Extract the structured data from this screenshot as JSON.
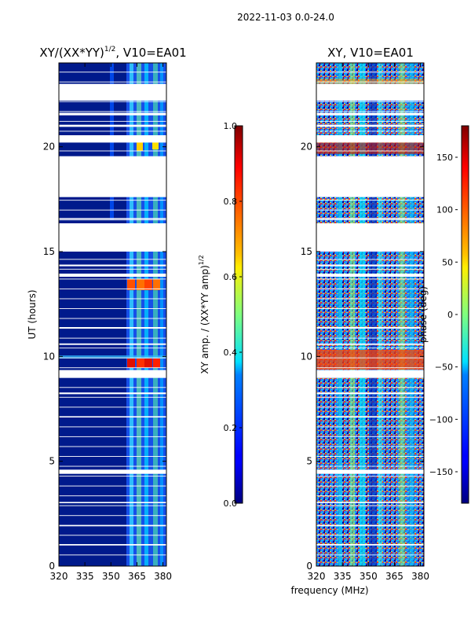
{
  "suptitle": "2022-11-03 0.0-24.0",
  "chart_data": [
    {
      "type": "heatmap",
      "title_main": "XY/(XX*YY)",
      "title_sup": "1/2",
      "title_suffix": ", V10=EA01",
      "xlabel": "",
      "ylabel": "UT (hours)",
      "xlim": [
        320,
        382
      ],
      "ylim": [
        0,
        24
      ],
      "xticks": [
        320,
        335,
        350,
        365,
        380
      ],
      "yticks": [
        0,
        5,
        10,
        15,
        20
      ],
      "colorbar": {
        "label_main": "XY amp. / (XX*YY amp)",
        "label_sup": "1/2",
        "range": [
          0.0,
          1.0
        ],
        "ticks": [
          "0.0",
          "0.2",
          "0.4",
          "0.6",
          "0.8",
          "1.0"
        ],
        "tick_values": [
          0.0,
          0.2,
          0.4,
          0.6,
          0.8,
          1.0
        ]
      }
    },
    {
      "type": "heatmap",
      "title": "XY, V10=EA01",
      "xlabel": "frequency (MHz)",
      "ylabel": "",
      "xlim": [
        320,
        382
      ],
      "ylim": [
        0,
        24
      ],
      "xticks": [
        320,
        335,
        350,
        365,
        380
      ],
      "yticks": [
        0,
        5,
        10,
        15,
        20
      ],
      "colorbar": {
        "label": "phase (deg)",
        "range": [
          -180,
          180
        ],
        "ticks": [
          "−150",
          "−100",
          "−50",
          "0",
          "50",
          "100",
          "150"
        ],
        "tick_values": [
          -150,
          -100,
          -50,
          0,
          50,
          100,
          150
        ]
      }
    }
  ],
  "flagged_hours": [
    [
      22.2,
      23.0
    ],
    [
      21.5,
      21.62
    ],
    [
      20.95,
      21.05
    ],
    [
      20.2,
      20.55
    ],
    [
      17.6,
      19.55
    ],
    [
      16.55,
      16.6
    ],
    [
      15.0,
      16.35
    ],
    [
      14.3,
      14.38
    ],
    [
      13.8,
      13.95
    ],
    [
      11.35,
      11.4
    ],
    [
      10.55,
      10.62
    ],
    [
      9.0,
      9.35
    ],
    [
      8.2,
      8.28
    ],
    [
      7.1,
      7.15
    ],
    [
      4.4,
      4.6
    ],
    [
      3.0,
      3.06
    ],
    [
      1.9,
      1.96
    ],
    [
      1.0,
      1.05
    ]
  ],
  "colors": {
    "flag": "#ffffff",
    "frame": "#000000"
  }
}
